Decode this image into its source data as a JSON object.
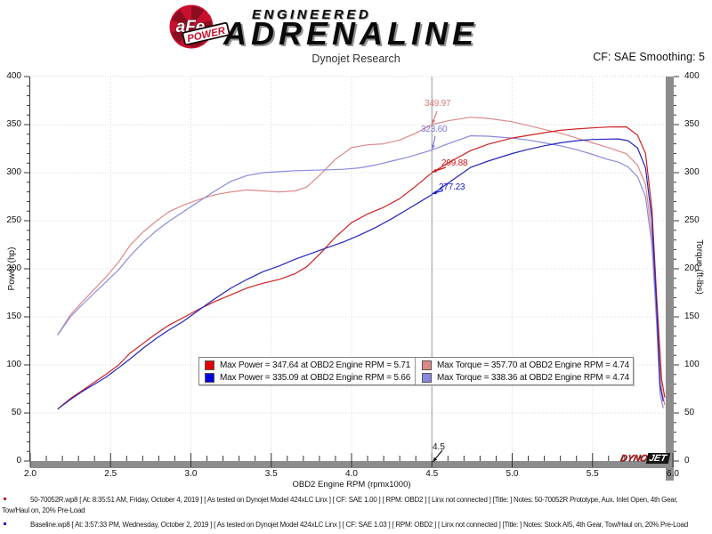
{
  "header": {
    "logo": {
      "afe": "aFe",
      "power": "POWER",
      "registered": "®",
      "engineered": "ENGINEERED",
      "adrenaline": "ADRENALINE"
    },
    "subtitle": "Dynojet Research",
    "smoothing": "CF: SAE Smoothing: 5"
  },
  "chart_data": {
    "type": "line",
    "title": "",
    "xlabel": "OBD2 Engine RPM (rpmx1000)",
    "ylabel_left": "Power (hp)",
    "ylabel_right": "Torque (ft-lbs)",
    "xlim": [
      2.0,
      6.0
    ],
    "ylim": [
      0,
      400
    ],
    "grid": "dotted",
    "x_ticks": [
      2.0,
      2.5,
      3.0,
      3.5,
      4.0,
      4.5,
      5.0,
      5.5,
      6.0
    ],
    "x_tick_labels": [
      "2.0",
      "2.5",
      "3.0",
      "3.5",
      "4.0",
      "4.5",
      "5.0",
      "5.5",
      "6.0"
    ],
    "y_ticks": [
      0,
      50,
      100,
      150,
      200,
      250,
      300,
      350,
      400
    ],
    "y_tick_labels": [
      "0",
      "50",
      "100",
      "150",
      "200",
      "250",
      "300",
      "350",
      "400"
    ],
    "cursor": {
      "rpm": 4.5,
      "label": "4.5",
      "callouts": [
        {
          "label": "349.97",
          "value": 349.97,
          "series": "torque-50-70052R",
          "color": "#dd7a7a"
        },
        {
          "label": "323.60",
          "value": 323.6,
          "series": "torque-baseline",
          "color": "#7a7add"
        },
        {
          "label": "299.88",
          "value": 299.88,
          "series": "power-50-70052R",
          "color": "#cc1414"
        },
        {
          "label": "277.23",
          "value": 277.23,
          "series": "power-baseline",
          "color": "#1414cc"
        }
      ]
    },
    "series": [
      {
        "name": "torque-50-70052R",
        "unit": "ft-lbs",
        "color": "#dd8a8a",
        "points": [
          [
            2.17,
            131
          ],
          [
            2.25,
            152
          ],
          [
            2.32,
            165
          ],
          [
            2.4,
            179
          ],
          [
            2.47,
            191
          ],
          [
            2.55,
            207
          ],
          [
            2.62,
            224
          ],
          [
            2.7,
            238
          ],
          [
            2.78,
            249
          ],
          [
            2.86,
            259
          ],
          [
            2.95,
            266
          ],
          [
            3.05,
            272
          ],
          [
            3.15,
            277
          ],
          [
            3.25,
            280
          ],
          [
            3.35,
            282
          ],
          [
            3.45,
            281
          ],
          [
            3.55,
            280
          ],
          [
            3.65,
            281
          ],
          [
            3.72,
            285
          ],
          [
            3.8,
            297
          ],
          [
            3.9,
            314
          ],
          [
            4.0,
            326
          ],
          [
            4.1,
            329
          ],
          [
            4.2,
            330
          ],
          [
            4.3,
            334
          ],
          [
            4.4,
            341
          ],
          [
            4.5,
            349.97
          ],
          [
            4.6,
            354
          ],
          [
            4.74,
            357.7
          ],
          [
            4.85,
            356.5
          ],
          [
            5.0,
            353
          ],
          [
            5.1,
            349
          ],
          [
            5.2,
            345
          ],
          [
            5.3,
            341
          ],
          [
            5.4,
            336
          ],
          [
            5.5,
            331
          ],
          [
            5.6,
            326
          ],
          [
            5.71,
            319.7
          ],
          [
            5.78,
            308
          ],
          [
            5.83,
            288
          ],
          [
            5.87,
            235
          ],
          [
            5.9,
            150
          ],
          [
            5.93,
            75
          ],
          [
            5.95,
            58
          ]
        ]
      },
      {
        "name": "torque-baseline",
        "unit": "ft-lbs",
        "color": "#8a8add",
        "points": [
          [
            2.17,
            131
          ],
          [
            2.25,
            150
          ],
          [
            2.32,
            162
          ],
          [
            2.4,
            175
          ],
          [
            2.47,
            186
          ],
          [
            2.55,
            199
          ],
          [
            2.62,
            213
          ],
          [
            2.7,
            227
          ],
          [
            2.78,
            239
          ],
          [
            2.86,
            249
          ],
          [
            2.95,
            259
          ],
          [
            3.05,
            270
          ],
          [
            3.15,
            281
          ],
          [
            3.25,
            291
          ],
          [
            3.35,
            297
          ],
          [
            3.45,
            300
          ],
          [
            3.55,
            301
          ],
          [
            3.65,
            302
          ],
          [
            3.75,
            302.5
          ],
          [
            3.85,
            303
          ],
          [
            3.95,
            303.5
          ],
          [
            4.05,
            305
          ],
          [
            4.15,
            308
          ],
          [
            4.25,
            312
          ],
          [
            4.35,
            316
          ],
          [
            4.45,
            321
          ],
          [
            4.5,
            323.6
          ],
          [
            4.6,
            330
          ],
          [
            4.74,
            338.36
          ],
          [
            4.85,
            338
          ],
          [
            5.0,
            336
          ],
          [
            5.1,
            334
          ],
          [
            5.2,
            331
          ],
          [
            5.3,
            328
          ],
          [
            5.4,
            324
          ],
          [
            5.5,
            319
          ],
          [
            5.6,
            313.5
          ],
          [
            5.66,
            311
          ],
          [
            5.72,
            306
          ],
          [
            5.78,
            296
          ],
          [
            5.83,
            275
          ],
          [
            5.87,
            225
          ],
          [
            5.9,
            140
          ],
          [
            5.92,
            70
          ],
          [
            5.94,
            55
          ]
        ]
      },
      {
        "name": "power-50-70052R",
        "unit": "hp",
        "color": "#cc2222",
        "points": [
          [
            2.17,
            54
          ],
          [
            2.25,
            65
          ],
          [
            2.32,
            73
          ],
          [
            2.4,
            82
          ],
          [
            2.47,
            90
          ],
          [
            2.55,
            100
          ],
          [
            2.62,
            112
          ],
          [
            2.7,
            122
          ],
          [
            2.78,
            132
          ],
          [
            2.86,
            141
          ],
          [
            2.95,
            149
          ],
          [
            3.05,
            158
          ],
          [
            3.15,
            166
          ],
          [
            3.25,
            173
          ],
          [
            3.35,
            180
          ],
          [
            3.45,
            185
          ],
          [
            3.55,
            189
          ],
          [
            3.65,
            195
          ],
          [
            3.72,
            202
          ],
          [
            3.8,
            215
          ],
          [
            3.9,
            233
          ],
          [
            4.0,
            248
          ],
          [
            4.1,
            257
          ],
          [
            4.2,
            264
          ],
          [
            4.3,
            273
          ],
          [
            4.4,
            286
          ],
          [
            4.5,
            299.88
          ],
          [
            4.6,
            310
          ],
          [
            4.74,
            322.9
          ],
          [
            4.85,
            329.5
          ],
          [
            5.0,
            336
          ],
          [
            5.1,
            338.8
          ],
          [
            5.2,
            341.6
          ],
          [
            5.3,
            344.1
          ],
          [
            5.4,
            345.5
          ],
          [
            5.5,
            346.6
          ],
          [
            5.6,
            347.5
          ],
          [
            5.71,
            347.64
          ],
          [
            5.78,
            339
          ],
          [
            5.83,
            320
          ],
          [
            5.87,
            262
          ],
          [
            5.9,
            168
          ],
          [
            5.93,
            85
          ],
          [
            5.95,
            66
          ]
        ]
      },
      {
        "name": "power-baseline",
        "unit": "hp",
        "color": "#2525bb",
        "points": [
          [
            2.17,
            54
          ],
          [
            2.25,
            64
          ],
          [
            2.32,
            72
          ],
          [
            2.4,
            80
          ],
          [
            2.47,
            87
          ],
          [
            2.55,
            97
          ],
          [
            2.62,
            106
          ],
          [
            2.7,
            117
          ],
          [
            2.78,
            127
          ],
          [
            2.86,
            136
          ],
          [
            2.95,
            145
          ],
          [
            3.05,
            157
          ],
          [
            3.15,
            169
          ],
          [
            3.25,
            180
          ],
          [
            3.35,
            189
          ],
          [
            3.45,
            197
          ],
          [
            3.55,
            203
          ],
          [
            3.65,
            210
          ],
          [
            3.75,
            216
          ],
          [
            3.85,
            222
          ],
          [
            3.95,
            228
          ],
          [
            4.05,
            235
          ],
          [
            4.15,
            243
          ],
          [
            4.25,
            252
          ],
          [
            4.35,
            262
          ],
          [
            4.45,
            272
          ],
          [
            4.5,
            277.23
          ],
          [
            4.6,
            289
          ],
          [
            4.74,
            305.4
          ],
          [
            4.85,
            312
          ],
          [
            5.0,
            319.9
          ],
          [
            5.1,
            324.3
          ],
          [
            5.2,
            328
          ],
          [
            5.3,
            331
          ],
          [
            5.4,
            333.2
          ],
          [
            5.5,
            334.5
          ],
          [
            5.6,
            334.9
          ],
          [
            5.66,
            335.09
          ],
          [
            5.72,
            333.3
          ],
          [
            5.78,
            325.8
          ],
          [
            5.83,
            305
          ],
          [
            5.87,
            251
          ],
          [
            5.9,
            157
          ],
          [
            5.92,
            79
          ],
          [
            5.94,
            62
          ]
        ]
      }
    ]
  },
  "legend": {
    "entries": [
      {
        "swatch": "#e00000",
        "text": "Max Power = 347.64 at OBD2 Engine RPM = 5.71"
      },
      {
        "swatch": "#0000dd",
        "text": "Max Power = 335.09 at OBD2 Engine RPM = 5.66"
      },
      {
        "swatch": "#e08888",
        "text": "Max Torque = 357.70 at OBD2 Engine RPM = 4.74"
      },
      {
        "swatch": "#8888e0",
        "text": "Max Torque = 338.36 at OBD2 Engine RPM = 4.74"
      }
    ]
  },
  "watermark": {
    "dyno": "DYNO",
    "jet": "JET"
  },
  "footnotes": [
    {
      "marker_color": "#bb2222",
      "line1": "50-70052R.wp8 [ At: 8:35:51 AM, Friday, October 4, 2019 ] [ As tested on Dynojet Model 424xLC Linx ] [ CF: SAE 1.00 ] [ RPM: OBD2 ] [ Linx not connected ] [Title: ]  Notes: 50-70052R Prototype, Aux. Inlet Open, 4th Gear,",
      "line2": "Tow/Haul on, 20% Pre-Load"
    },
    {
      "marker_color": "#2222bb",
      "line1": "Baseline.wp8 [ At: 3:57:33 PM, Wednesday, October 2, 2019 ] [ As tested on Dynojet Model 424xLC Linx ] [ CF: SAE 1.03 ] [ RPM: OBD2 ] [ Linx not connected ] [Title: ]  Notes: Stock AI5, 4th Gear, Tow/Haul on, 20% Pre-Load",
      "line2": ""
    }
  ]
}
